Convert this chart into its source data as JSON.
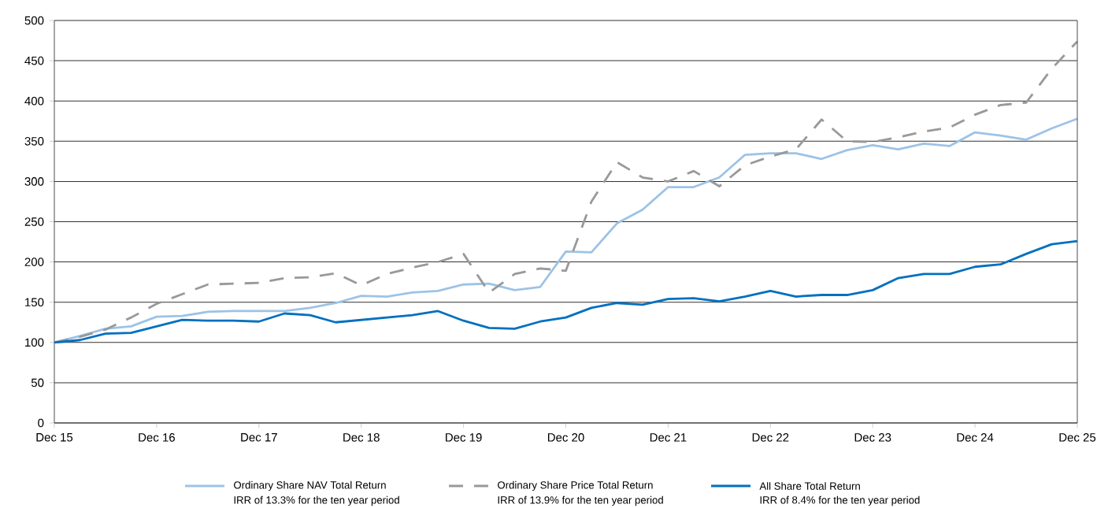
{
  "chart_data": {
    "type": "line",
    "x": [
      "2015-12",
      "2016-03",
      "2016-06",
      "2016-09",
      "2016-12",
      "2017-03",
      "2017-06",
      "2017-09",
      "2017-12",
      "2018-03",
      "2018-06",
      "2018-09",
      "2018-12",
      "2019-03",
      "2019-06",
      "2019-09",
      "2019-12",
      "2020-03",
      "2020-06",
      "2020-09",
      "2020-12",
      "2021-03",
      "2021-06",
      "2021-09",
      "2021-12",
      "2022-03",
      "2022-06",
      "2022-09",
      "2022-12",
      "2023-03",
      "2023-06",
      "2023-09",
      "2023-12",
      "2024-03",
      "2024-06",
      "2024-09",
      "2024-12",
      "2025-03",
      "2025-06",
      "2025-09",
      "2025-12"
    ],
    "series": [
      {
        "name": "Ordinary Share NAV Total Return",
        "color": "#9dc3e6",
        "line_style": "solid",
        "values": [
          100,
          108,
          117,
          120,
          132,
          133,
          138,
          139,
          139,
          139,
          143,
          149,
          158,
          157,
          162,
          164,
          172,
          173,
          165,
          169,
          213,
          212,
          248,
          265,
          293,
          293,
          305,
          333,
          335,
          335,
          328,
          339,
          345,
          340,
          347,
          344,
          361,
          357,
          352,
          366,
          378
        ]
      },
      {
        "name": "Ordinary Share Price Total Return",
        "color": "#999999",
        "line_style": "dashed",
        "values": [
          100,
          107,
          116,
          131,
          148,
          160,
          172,
          173,
          174,
          180,
          181,
          186,
          171,
          185,
          193,
          200,
          210,
          162,
          185,
          192,
          189,
          275,
          324,
          305,
          300,
          313,
          294,
          320,
          331,
          340,
          377,
          350,
          349,
          355,
          362,
          367,
          383,
          395,
          398,
          440,
          474
        ]
      },
      {
        "name": "All Share Total Return",
        "color": "#0070c0",
        "line_style": "solid",
        "values": [
          100,
          103,
          111,
          112,
          120,
          128,
          127,
          127,
          126,
          136,
          134,
          125,
          128,
          131,
          134,
          139,
          127,
          118,
          117,
          126,
          131,
          143,
          149,
          147,
          154,
          155,
          151,
          157,
          164,
          157,
          159,
          159,
          165,
          180,
          185,
          185,
          194,
          197,
          210,
          222,
          226
        ]
      }
    ],
    "annotations": [
      "IRR of 13.3% for the ten year period",
      "IRR of 13.9% for the ten year period",
      "IRR of 8.4% for the ten year period"
    ],
    "xlim": [
      "2015-12",
      "2025-12"
    ],
    "xticks": [
      {
        "value": "2015-12",
        "label": "Dec 15"
      },
      {
        "value": "2016-12",
        "label": "Dec 16"
      },
      {
        "value": "2017-12",
        "label": "Dec 17"
      },
      {
        "value": "2018-12",
        "label": "Dec 18"
      },
      {
        "value": "2019-12",
        "label": "Dec 19"
      },
      {
        "value": "2020-12",
        "label": "Dec 20"
      },
      {
        "value": "2021-12",
        "label": "Dec 21"
      },
      {
        "value": "2022-12",
        "label": "Dec 22"
      },
      {
        "value": "2023-12",
        "label": "Dec 23"
      },
      {
        "value": "2024-12",
        "label": "Dec 24"
      },
      {
        "value": "2025-12",
        "label": "Dec 25"
      }
    ],
    "ylim": [
      0,
      500
    ],
    "yticks": [
      0,
      50,
      100,
      150,
      200,
      250,
      300,
      350,
      400,
      450,
      500
    ],
    "grid": "y",
    "legend": "bottom",
    "marker": "none"
  }
}
